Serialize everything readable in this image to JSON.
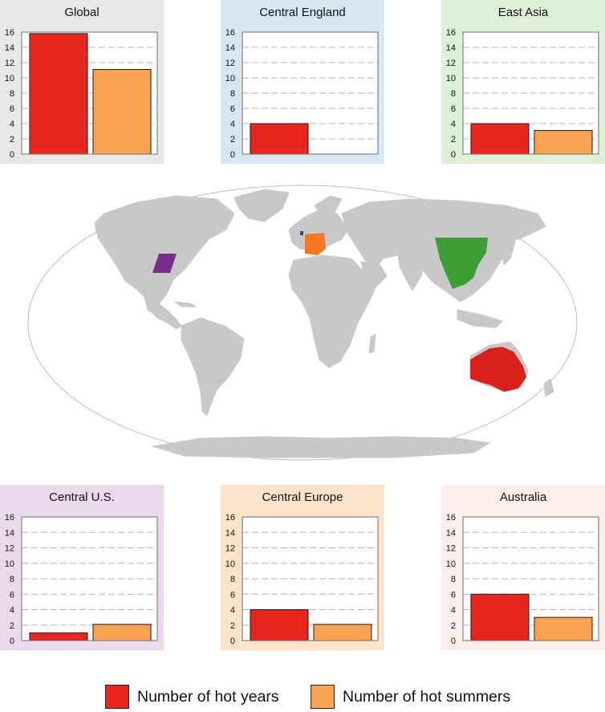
{
  "colors": {
    "hot_years": "#e8251f",
    "hot_summers": "#f9a352",
    "map_land": "#c8c8c8",
    "map_ocean": "#ffffff",
    "region_central_us": "#7b2d8e",
    "region_central_europe": "#f47a20",
    "region_central_england": "#1f4e9c",
    "region_east_asia": "#3c9c36",
    "region_australia": "#d9211c"
  },
  "legend": {
    "hot_years_label": "Number of hot years",
    "hot_summers_label": "Number of hot summers"
  },
  "chart_data": [
    {
      "type": "bar",
      "title": "Global",
      "panel_background": "#e8e8e8",
      "categories": [
        "Number of hot years",
        "Number of hot summers"
      ],
      "values": [
        15.8,
        11.1
      ],
      "ylim": [
        0,
        16
      ],
      "yticks": [
        0,
        2,
        4,
        6,
        8,
        10,
        12,
        14,
        16
      ],
      "grid": true
    },
    {
      "type": "bar",
      "title": "Central England",
      "panel_background": "#d8e6f1",
      "categories": [
        "Number of hot years",
        "Number of hot summers"
      ],
      "values": [
        4.0,
        0
      ],
      "ylim": [
        0,
        16
      ],
      "yticks": [
        0,
        2,
        4,
        6,
        8,
        10,
        12,
        14,
        16
      ],
      "grid": true
    },
    {
      "type": "bar",
      "title": "East Asia",
      "panel_background": "#def0d8",
      "categories": [
        "Number of hot years",
        "Number of hot summers"
      ],
      "values": [
        4.0,
        3.1
      ],
      "ylim": [
        0,
        16
      ],
      "yticks": [
        0,
        2,
        4,
        6,
        8,
        10,
        12,
        14,
        16
      ],
      "grid": true
    },
    {
      "type": "bar",
      "title": "Central U.S.",
      "panel_background": "#ead9eb",
      "categories": [
        "Number of hot years",
        "Number of hot summers"
      ],
      "values": [
        1.0,
        2.1
      ],
      "ylim": [
        0,
        16
      ],
      "yticks": [
        0,
        2,
        4,
        6,
        8,
        10,
        12,
        14,
        16
      ],
      "grid": true
    },
    {
      "type": "bar",
      "title": "Central Europe",
      "panel_background": "#fce3c9",
      "categories": [
        "Number of hot years",
        "Number of hot summers"
      ],
      "values": [
        4.0,
        2.1
      ],
      "ylim": [
        0,
        16
      ],
      "yticks": [
        0,
        2,
        4,
        6,
        8,
        10,
        12,
        14,
        16
      ],
      "grid": true
    },
    {
      "type": "bar",
      "title": "Australia",
      "panel_background": "#fdeeec",
      "categories": [
        "Number of hot years",
        "Number of hot summers"
      ],
      "values": [
        6.0,
        3.0
      ],
      "ylim": [
        0,
        16
      ],
      "yticks": [
        0,
        2,
        4,
        6,
        8,
        10,
        12,
        14,
        16
      ],
      "grid": true
    }
  ]
}
